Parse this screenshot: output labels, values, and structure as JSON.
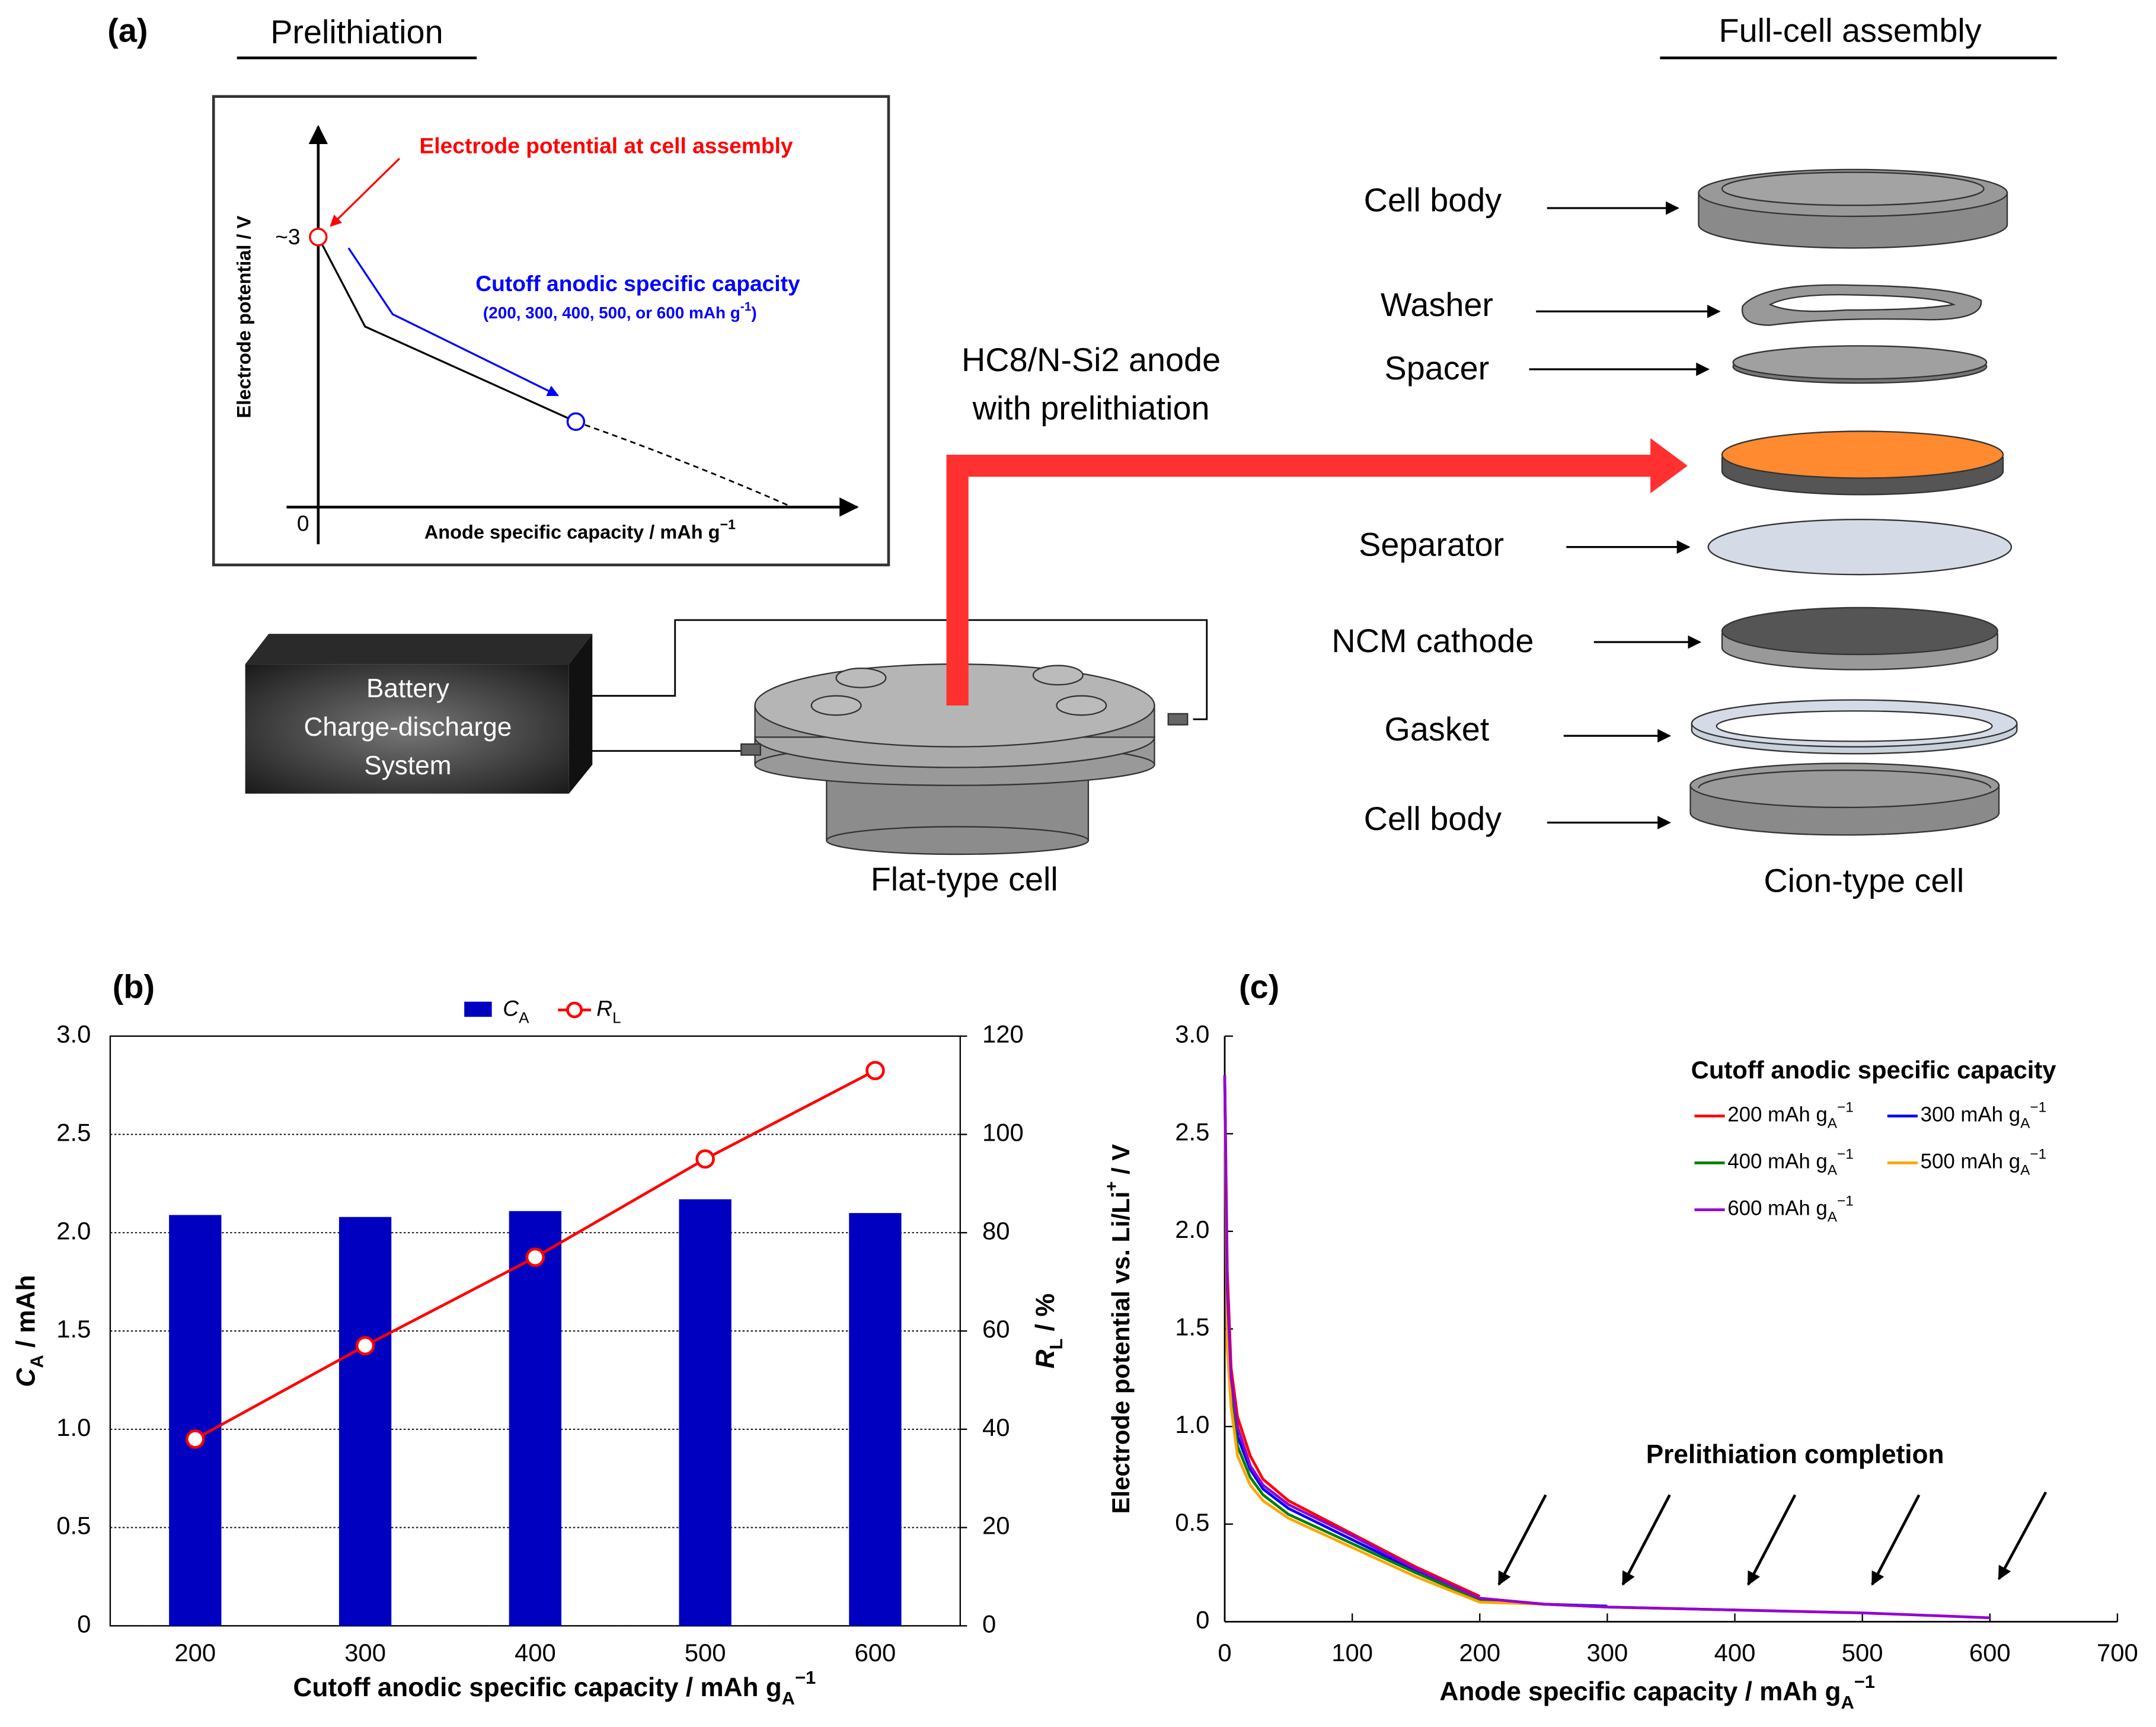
{
  "diagram": {
    "panel_label": "(a)",
    "left_heading": "Prelithiation",
    "right_heading": "Full-cell assembly",
    "inset": {
      "red_note": "Electrode potential at cell assembly",
      "blue_note": "Cutoff anodic specific capacity",
      "blue_sub": {
        "text": "(200, 300, 400, 500, or 600 mAh g",
        "sup": "-1",
        "rest": ")"
      },
      "y_tick_top": "~3",
      "y_tick_zero": "0",
      "y_label": "Electrode potential / V",
      "x_label": {
        "text": "Anode specific capacity / mAh g",
        "sup": "−1"
      }
    },
    "battery": [
      "Battery",
      "Charge-discharge",
      "System"
    ],
    "anode_label": [
      "HC8/N-Si2 anode",
      "with prelithiation"
    ],
    "flat_cell": "Flat-type cell",
    "coin_cell": "Cion-type cell",
    "parts": [
      "Cell body",
      "Washer",
      "Spacer",
      "Separator",
      "NCM cathode",
      "Gasket",
      "Cell body"
    ]
  },
  "chart_data": [
    {
      "type": "bar",
      "panel_label": "(b)",
      "categories": [
        "200",
        "300",
        "400",
        "500",
        "600"
      ],
      "x_label": {
        "text": "Cutoff anodic specific capacity  /  mAh g",
        "sub": "A",
        "sup": "−1"
      },
      "y_label": {
        "text": "C",
        "sub": "A",
        "rest": " / mAh"
      },
      "y2_label": {
        "text": "R",
        "sub": "L",
        "rest": " / %"
      },
      "ylim": [
        0,
        3
      ],
      "yticks": [
        0,
        0.5,
        {
          "value": 1,
          "label": "1.0"
        },
        1.5,
        {
          "value": 2,
          "label": "2.0"
        },
        2.5,
        {
          "value": 3,
          "label": "3.0"
        }
      ],
      "y2lim": [
        0,
        120
      ],
      "y2ticks": [
        0,
        20,
        40,
        60,
        80,
        100,
        120
      ],
      "grid": true,
      "series": [
        {
          "name": {
            "text": "C",
            "sub": "A"
          },
          "type": "bar",
          "color": "#0000c0",
          "values": [
            2.09,
            2.08,
            2.11,
            2.17,
            2.1
          ]
        },
        {
          "name": {
            "text": "R",
            "sub": "L"
          },
          "type": "line",
          "axis": "y2",
          "color": "#ff0000",
          "values": [
            38,
            57,
            75,
            95,
            113
          ]
        }
      ]
    },
    {
      "type": "line",
      "panel_label": "(c)",
      "x_label": {
        "text": "Anode specific capacity / mAh g",
        "sub": "A",
        "sup": "−1"
      },
      "y_label": {
        "text": "Electrode potential vs. Li/Li",
        "sup": "+",
        "rest": " / V"
      },
      "legend_title": "Cutoff anodic specific capacity",
      "annotation": "Prelithiation completion",
      "x": [
        0,
        2,
        5,
        10,
        20,
        30,
        50,
        100,
        150,
        200,
        250,
        300,
        400,
        500,
        600
      ],
      "xlim": [
        0,
        700
      ],
      "xticks": [
        0,
        100,
        200,
        300,
        400,
        500,
        600,
        700
      ],
      "ylim": [
        0,
        3
      ],
      "yticks": [
        0,
        0.5,
        {
          "value": 1,
          "label": "1.0"
        },
        1.5,
        {
          "value": 2,
          "label": "2.0"
        },
        2.5,
        {
          "value": 3,
          "label": "3.0"
        }
      ],
      "series": [
        {
          "name": {
            "text": "200 mAh g",
            "sub": "A",
            "sup": "−1"
          },
          "color": "#ff0000",
          "values": [
            2.8,
            1.8,
            1.3,
            1.05,
            0.85,
            0.73,
            0.62,
            0.45,
            0.28,
            0.13,
            null,
            null,
            null,
            null,
            null
          ]
        },
        {
          "name": {
            "text": "300 mAh g",
            "sub": "A",
            "sup": "−1"
          },
          "color": "#0000ff",
          "values": [
            2.8,
            1.6,
            1.2,
            0.95,
            0.78,
            0.68,
            0.58,
            0.42,
            0.26,
            0.12,
            0.09,
            0.08,
            null,
            null,
            null
          ]
        },
        {
          "name": {
            "text": "400 mAh g",
            "sub": "A",
            "sup": "−1"
          },
          "color": "#008000",
          "values": [
            2.8,
            1.5,
            1.15,
            0.9,
            0.74,
            0.65,
            0.55,
            0.4,
            0.25,
            0.11,
            0.09,
            0.075,
            0.06,
            null,
            null
          ]
        },
        {
          "name": {
            "text": "500 mAh g",
            "sub": "A",
            "sup": "−1"
          },
          "color": "#ffa500",
          "values": [
            2.8,
            1.4,
            1.1,
            0.85,
            0.7,
            0.62,
            0.53,
            0.38,
            0.23,
            0.1,
            0.09,
            0.075,
            0.06,
            0.045,
            null
          ]
        },
        {
          "name": {
            "text": "600 mAh g",
            "sub": "A",
            "sup": "−1"
          },
          "color": "#9400d3",
          "values": [
            2.8,
            1.7,
            1.25,
            1.0,
            0.8,
            0.7,
            0.6,
            0.44,
            0.27,
            0.12,
            0.09,
            0.075,
            0.06,
            0.045,
            0.02
          ]
        }
      ]
    }
  ]
}
